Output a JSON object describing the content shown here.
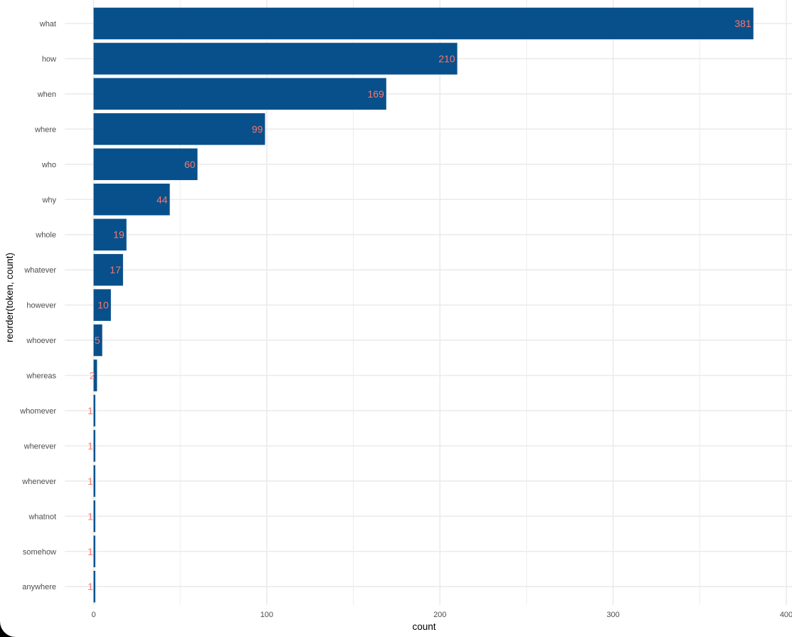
{
  "chart_data": {
    "type": "bar",
    "orientation": "horizontal",
    "categories": [
      "what",
      "how",
      "when",
      "where",
      "who",
      "why",
      "whole",
      "whatever",
      "however",
      "whoever",
      "whereas",
      "whomever",
      "wherever",
      "whenever",
      "whatnot",
      "somehow",
      "anywhere"
    ],
    "values": [
      381,
      210,
      169,
      99,
      60,
      44,
      19,
      17,
      10,
      5,
      2,
      1,
      1,
      1,
      1,
      1,
      1
    ],
    "xlabel": "count",
    "ylabel": "reorder(token, count)",
    "xlim": [
      0,
      400
    ],
    "x_ticks": [
      0,
      100,
      200,
      300,
      400
    ],
    "x_tick_labels": [
      "0",
      "100",
      "200",
      "300",
      "400"
    ],
    "grid": true,
    "bar_color": "#08508b",
    "label_color": "#f8766d",
    "grid_color": "#ebebeb"
  }
}
